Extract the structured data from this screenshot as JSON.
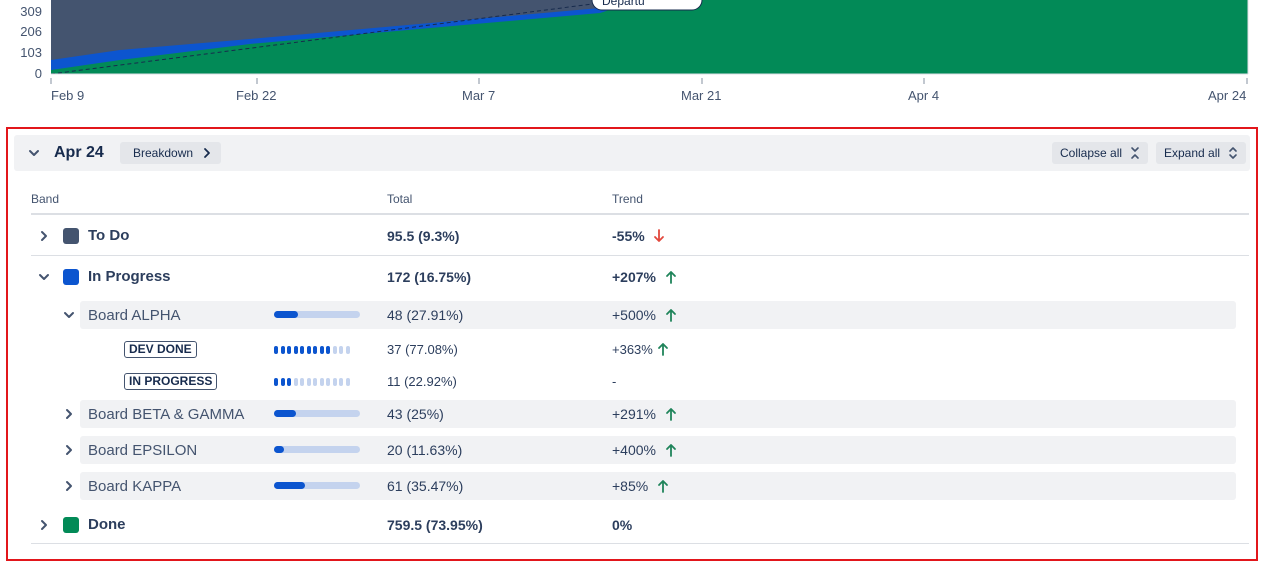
{
  "chart_data": {
    "type": "area",
    "y_ticks": [
      "309",
      "206",
      "103",
      "0"
    ],
    "x_ticks": [
      "Feb 9",
      "Feb 22",
      "Mar 7",
      "Mar 21",
      "Apr 4",
      "Apr 24"
    ],
    "annotation": "Departu",
    "colors": {
      "to_do": "#44546f",
      "in_progress": "#0c55cf",
      "done": "#028a57"
    }
  },
  "panel": {
    "date": "Apr 24",
    "breakdown_label": "Breakdown",
    "collapse_all_label": "Collapse all",
    "expand_all_label": "Expand all",
    "columns": {
      "band": "Band",
      "total": "Total",
      "trend": "Trend"
    }
  },
  "rows": {
    "todo": {
      "label": "To Do",
      "total": "95.5 (9.3%)",
      "trend": "-55%",
      "color": "#44546f"
    },
    "inprogress": {
      "label": "In Progress",
      "total": "172 (16.75%)",
      "trend": "+207%",
      "color": "#0c55cf"
    },
    "alpha": {
      "label": "Board ALPHA",
      "total": "48 (27.91%)",
      "trend": "+500%",
      "share": 27.91
    },
    "devdone": {
      "label": "DEV DONE",
      "total": "37 (77.08%)",
      "trend": "+363%",
      "share": 77.08
    },
    "inprog_status": {
      "label": "IN PROGRESS",
      "total": "11 (22.92%)",
      "trend": "-",
      "share": 22.92
    },
    "beta": {
      "label": "Board BETA & GAMMA",
      "total": "43 (25%)",
      "trend": "+291%",
      "share": 25
    },
    "epsilon": {
      "label": "Board EPSILON",
      "total": "20 (11.63%)",
      "trend": "+400%",
      "share": 11.63
    },
    "kappa": {
      "label": "Board KAPPA",
      "total": "61 (35.47%)",
      "trend": "+85%",
      "share": 35.47
    },
    "done": {
      "label": "Done",
      "total": "759.5 (73.95%)",
      "trend": "0%",
      "color": "#028a57"
    }
  }
}
